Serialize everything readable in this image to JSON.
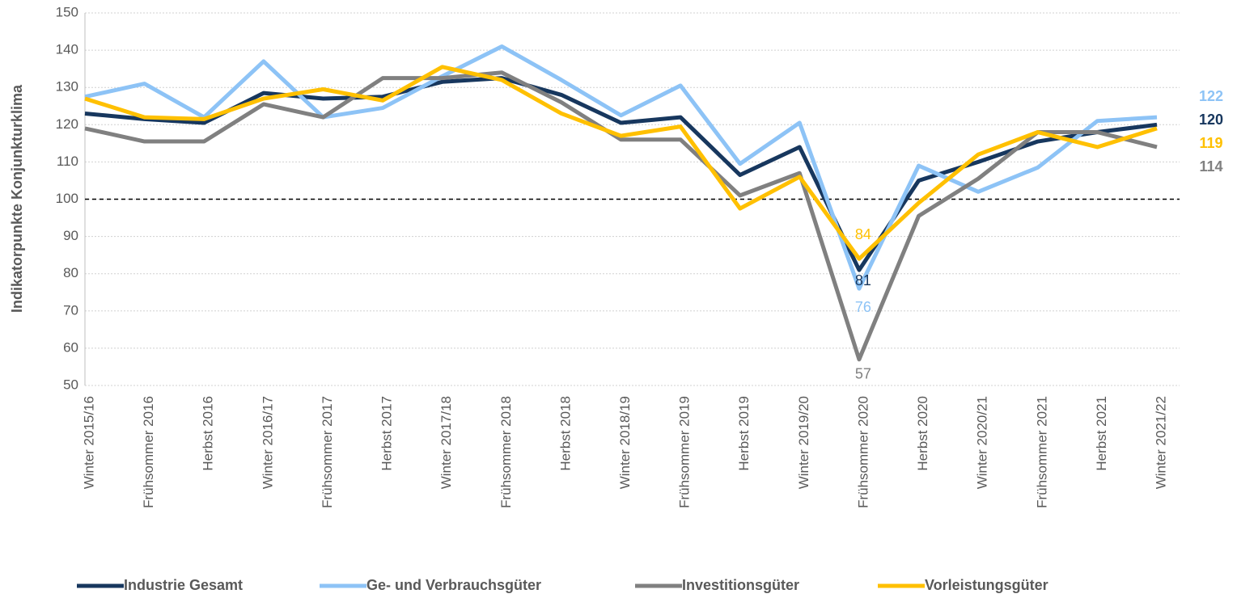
{
  "chart_data": {
    "type": "line",
    "y_label": "Indikatorpunkte Konjunkturklima",
    "categories": [
      "Winter 2015/16",
      "Frühsommer 2016",
      "Herbst 2016",
      "Winter 2016/17",
      "Frühsommer 2017",
      "Herbst 2017",
      "Winter 2017/18",
      "Frühsommer 2018",
      "Herbst 2018",
      "Winter 2018/19",
      "Frühsommer 2019",
      "Herbst 2019",
      "Winter 2019/20",
      "Frühsommer 2020",
      "Herbst 2020",
      "Winter 2020/21",
      "Frühsommer 2021",
      "Herbst 2021",
      "Winter 2021/22"
    ],
    "series": [
      {
        "name": "Industrie Gesamt",
        "color": "#17375e",
        "values": [
          123,
          121.5,
          120.5,
          128.5,
          127,
          127.5,
          131.5,
          132.5,
          128,
          120.5,
          122,
          106.5,
          114,
          81,
          105,
          110,
          115.5,
          118,
          120
        ],
        "value_labels": [
          null,
          null,
          null,
          null,
          null,
          null,
          null,
          null,
          null,
          null,
          null,
          null,
          null,
          "81",
          null,
          null,
          null,
          null,
          "120"
        ]
      },
      {
        "name": "Ge- und Verbrauchsgüter",
        "color": "#8dc3f6",
        "values": [
          127.5,
          131,
          122,
          137,
          122,
          124.5,
          133,
          141,
          132,
          122.5,
          130.5,
          109.5,
          120.5,
          76,
          109,
          102,
          108.5,
          121,
          122
        ],
        "value_labels": [
          null,
          null,
          null,
          null,
          null,
          null,
          null,
          null,
          null,
          null,
          null,
          null,
          null,
          "76",
          null,
          null,
          null,
          null,
          "122"
        ]
      },
      {
        "name": "Investitionsgüter",
        "color": "#808080",
        "values": [
          119,
          115.5,
          115.5,
          125.5,
          122,
          132.5,
          132.5,
          134,
          126,
          116,
          116,
          101,
          107,
          57,
          95.5,
          105.5,
          118,
          118,
          114
        ],
        "value_labels": [
          null,
          null,
          null,
          null,
          null,
          null,
          null,
          null,
          null,
          null,
          null,
          null,
          null,
          "57",
          null,
          null,
          null,
          null,
          "114"
        ]
      },
      {
        "name": "Vorleistungsgüter",
        "color": "#ffc000",
        "values": [
          127,
          122,
          121.5,
          127,
          129.5,
          126.5,
          135.5,
          132,
          123,
          117,
          119.5,
          97.5,
          106,
          84,
          99,
          112,
          118,
          114,
          119
        ],
        "value_labels": [
          null,
          null,
          null,
          null,
          null,
          null,
          null,
          null,
          null,
          null,
          null,
          null,
          null,
          "84",
          null,
          null,
          null,
          null,
          "119"
        ]
      }
    ],
    "ylim": [
      50,
      150
    ],
    "yticks": [
      50,
      60,
      70,
      80,
      90,
      100,
      110,
      120,
      130,
      140,
      150
    ],
    "reference_line": 100,
    "grid": true,
    "legend": "bottom"
  }
}
